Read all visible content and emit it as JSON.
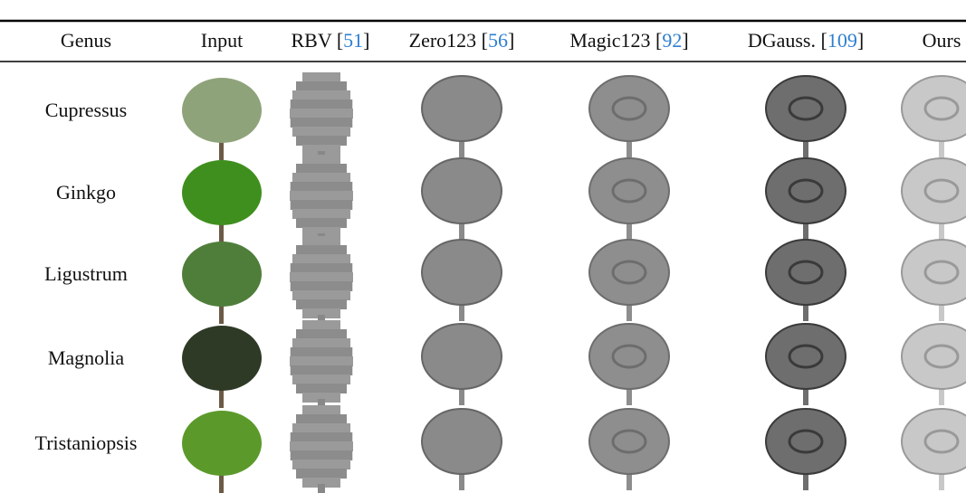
{
  "header": {
    "columns": [
      {
        "label": "Genus"
      },
      {
        "label": "Input"
      },
      {
        "label": "RBV [",
        "ref": "51",
        "end": "]"
      },
      {
        "label": "Zero123 [",
        "ref": "56",
        "end": "]"
      },
      {
        "label": "Magic123 [",
        "ref": "92",
        "end": "]"
      },
      {
        "label": "DGauss. [",
        "ref": "109",
        "end": "]"
      },
      {
        "label": "Ours"
      }
    ]
  },
  "rows": [
    "Cupressus",
    "Ginkgo",
    "Ligustrum",
    "Magnolia",
    "Tristaniopsis"
  ]
}
